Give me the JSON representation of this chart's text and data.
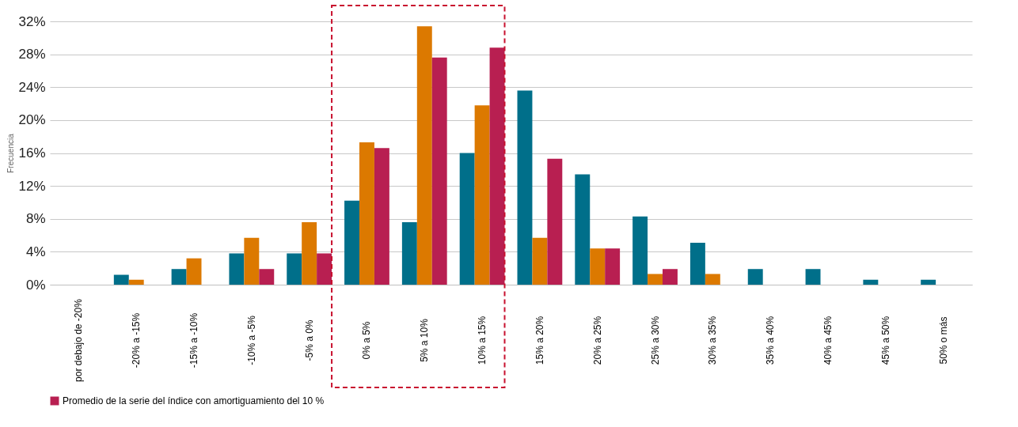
{
  "chart_data": {
    "type": "bar",
    "ylabel": "Frecuencia",
    "categories": [
      "por debajo de -20%",
      "-20% a -15%",
      "-15% a -10%",
      "-10% a -5%",
      "-5% a 0%",
      "0% a 5%",
      "5% a 10%",
      "10% a 15%",
      "15% a 20%",
      "20% a 25%",
      "25% a 30%",
      "30% a 35%",
      "35% a 40%",
      "40% a 45%",
      "45% a 50%",
      "50% o más"
    ],
    "series": [
      {
        "color": "#006f8a",
        "values": [
          0,
          1.2,
          1.9,
          3.8,
          3.8,
          10.2,
          7.6,
          16.0,
          23.6,
          13.4,
          8.3,
          5.1,
          1.9,
          1.9,
          0.6,
          0.6
        ]
      },
      {
        "color": "#dc7900",
        "values": [
          0,
          0.6,
          3.2,
          5.7,
          7.6,
          17.3,
          31.4,
          21.8,
          5.7,
          4.4,
          1.3,
          1.3,
          0,
          0,
          0,
          0
        ]
      },
      {
        "name": "Promedio de la serie del índice con amortiguamiento del 10 %",
        "color": "#b81f51",
        "values": [
          0,
          0,
          0,
          1.9,
          3.8,
          16.6,
          27.6,
          28.8,
          15.3,
          4.4,
          1.9,
          0,
          0,
          0,
          0,
          0
        ]
      }
    ],
    "ylim": [
      0,
      32
    ],
    "yticks": [
      {
        "value": 0,
        "label": "0%"
      },
      {
        "value": 4,
        "label": "4%"
      },
      {
        "value": 8,
        "label": "8%"
      },
      {
        "value": 12,
        "label": "12%"
      },
      {
        "value": 16,
        "label": "16%"
      },
      {
        "value": 20,
        "label": "20%"
      },
      {
        "value": 24,
        "label": "24%"
      },
      {
        "value": 28,
        "label": "28%"
      },
      {
        "value": 32,
        "label": "32%"
      }
    ],
    "grid": "y",
    "legend": "bottom"
  }
}
